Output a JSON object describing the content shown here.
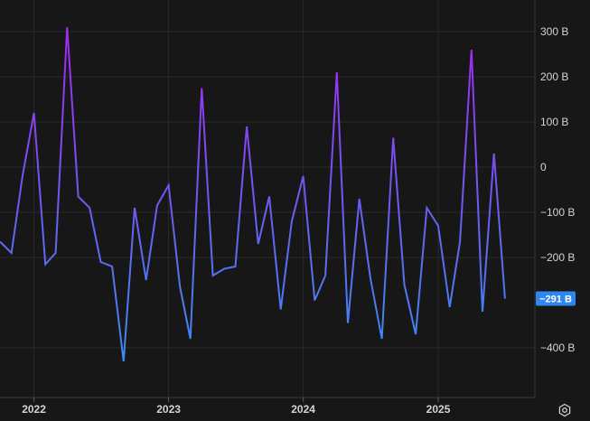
{
  "chart_data": {
    "type": "line",
    "title": "",
    "xlabel": "",
    "ylabel": "",
    "y_unit": "B",
    "ylim": [
      -510,
      370
    ],
    "xlim": [
      "2021-10-01",
      "2025-09-20"
    ],
    "y_ticks": [
      300,
      200,
      100,
      0,
      -100,
      -200,
      -400
    ],
    "y_tick_labels": [
      "300 B",
      "200 B",
      "100 B",
      "0",
      "−100 B",
      "−200 B",
      "−400 B"
    ],
    "x_ticks": [
      "2022-01-01",
      "2023-01-01",
      "2024-01-01",
      "2025-01-01"
    ],
    "x_tick_labels": [
      "2022",
      "2023",
      "2024",
      "2025"
    ],
    "last_value": -291,
    "last_value_label": "−291 B",
    "grid": true,
    "legend": "none",
    "colors": {
      "high": "#a526f0",
      "low": "#3a8cf5",
      "background": "#171717",
      "grid": "#2b2b2b",
      "badge": "#2e86f0"
    },
    "series": [
      {
        "x": [
          "2021-10-01",
          "2021-11-01",
          "2021-12-01",
          "2022-01-01",
          "2022-02-01",
          "2022-03-01",
          "2022-04-01",
          "2022-05-01",
          "2022-06-01",
          "2022-07-01",
          "2022-08-01",
          "2022-09-01",
          "2022-10-01",
          "2022-11-01",
          "2022-12-01",
          "2023-01-01",
          "2023-02-01",
          "2023-03-01",
          "2023-04-01",
          "2023-05-01",
          "2023-06-01",
          "2023-07-01",
          "2023-08-01",
          "2023-09-01",
          "2023-10-01",
          "2023-11-01",
          "2023-12-01",
          "2024-01-01",
          "2024-02-01",
          "2024-03-01",
          "2024-04-01",
          "2024-05-01",
          "2024-06-01",
          "2024-07-01",
          "2024-08-01",
          "2024-09-01",
          "2024-10-01",
          "2024-11-01",
          "2024-12-01",
          "2025-01-01",
          "2025-02-01",
          "2025-03-01",
          "2025-04-01",
          "2025-05-01",
          "2025-06-01",
          "2025-07-01"
        ],
        "values": [
          -165,
          -190,
          -20,
          120,
          -215,
          -190,
          310,
          -65,
          -90,
          -210,
          -220,
          -430,
          -90,
          -250,
          -85,
          -40,
          -265,
          -380,
          175,
          -240,
          -225,
          -220,
          90,
          -170,
          -65,
          -315,
          -120,
          -20,
          -295,
          -240,
          210,
          -345,
          -70,
          -245,
          -380,
          65,
          -260,
          -370,
          -90,
          -130,
          -310,
          -165,
          260,
          -320,
          30,
          -291
        ]
      }
    ]
  }
}
